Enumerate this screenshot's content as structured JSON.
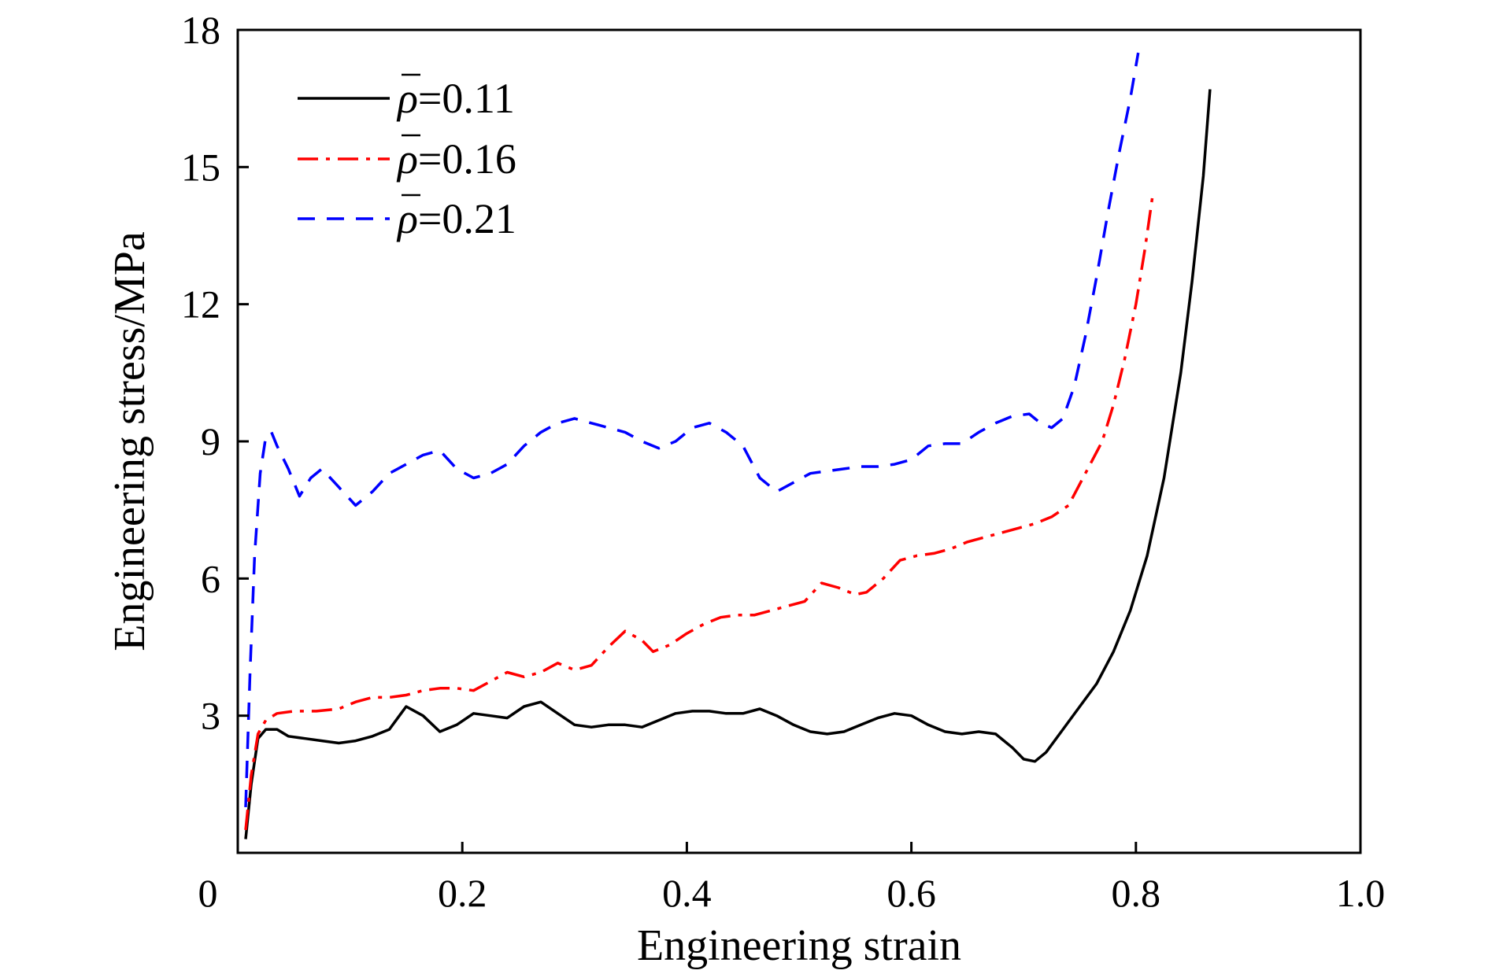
{
  "chart_data": {
    "type": "line",
    "title": "",
    "xlabel": "Engineering strain",
    "ylabel": "Engineering stress/MPa",
    "xlim": [
      0,
      1.0
    ],
    "ylim": [
      0,
      18
    ],
    "x_ticks": [
      0,
      0.2,
      0.4,
      0.6,
      0.8,
      1.0
    ],
    "x_tick_labels": [
      "0",
      "0.2",
      "0.4",
      "0.6",
      "0.8",
      "1.0"
    ],
    "y_ticks": [
      3,
      6,
      9,
      12,
      15,
      18
    ],
    "y_tick_labels": [
      "3",
      "6",
      "9",
      "12",
      "15",
      "18"
    ],
    "grid": false,
    "legend_position": "top-left",
    "series": [
      {
        "name": "ρ=0.11",
        "legend_symbol": "ρ",
        "legend_value": "=0.11",
        "color": "#000000",
        "dash": "solid",
        "points": [
          [
            0.007,
            0.3
          ],
          [
            0.012,
            1.5
          ],
          [
            0.018,
            2.5
          ],
          [
            0.025,
            2.7
          ],
          [
            0.035,
            2.7
          ],
          [
            0.045,
            2.55
          ],
          [
            0.06,
            2.5
          ],
          [
            0.075,
            2.45
          ],
          [
            0.09,
            2.4
          ],
          [
            0.105,
            2.45
          ],
          [
            0.12,
            2.55
          ],
          [
            0.135,
            2.7
          ],
          [
            0.15,
            3.2
          ],
          [
            0.165,
            3.0
          ],
          [
            0.18,
            2.65
          ],
          [
            0.195,
            2.8
          ],
          [
            0.21,
            3.05
          ],
          [
            0.225,
            3.0
          ],
          [
            0.24,
            2.95
          ],
          [
            0.255,
            3.2
          ],
          [
            0.27,
            3.3
          ],
          [
            0.285,
            3.05
          ],
          [
            0.3,
            2.8
          ],
          [
            0.315,
            2.75
          ],
          [
            0.33,
            2.8
          ],
          [
            0.345,
            2.8
          ],
          [
            0.36,
            2.75
          ],
          [
            0.375,
            2.9
          ],
          [
            0.39,
            3.05
          ],
          [
            0.405,
            3.1
          ],
          [
            0.42,
            3.1
          ],
          [
            0.435,
            3.05
          ],
          [
            0.45,
            3.05
          ],
          [
            0.465,
            3.15
          ],
          [
            0.48,
            3.0
          ],
          [
            0.495,
            2.8
          ],
          [
            0.51,
            2.65
          ],
          [
            0.525,
            2.6
          ],
          [
            0.54,
            2.65
          ],
          [
            0.555,
            2.8
          ],
          [
            0.57,
            2.95
          ],
          [
            0.585,
            3.05
          ],
          [
            0.6,
            3.0
          ],
          [
            0.615,
            2.8
          ],
          [
            0.63,
            2.65
          ],
          [
            0.645,
            2.6
          ],
          [
            0.66,
            2.65
          ],
          [
            0.675,
            2.6
          ],
          [
            0.69,
            2.3
          ],
          [
            0.7,
            2.05
          ],
          [
            0.71,
            2.0
          ],
          [
            0.72,
            2.2
          ],
          [
            0.735,
            2.7
          ],
          [
            0.75,
            3.2
          ],
          [
            0.765,
            3.7
          ],
          [
            0.78,
            4.4
          ],
          [
            0.795,
            5.3
          ],
          [
            0.81,
            6.5
          ],
          [
            0.825,
            8.2
          ],
          [
            0.84,
            10.5
          ],
          [
            0.85,
            12.5
          ],
          [
            0.86,
            14.8
          ],
          [
            0.866,
            16.7
          ]
        ]
      },
      {
        "name": "ρ=0.16",
        "legend_symbol": "ρ",
        "legend_value": "=0.16",
        "color": "#ff0000",
        "dash": "dashdot",
        "points": [
          [
            0.007,
            0.5
          ],
          [
            0.012,
            1.7
          ],
          [
            0.018,
            2.6
          ],
          [
            0.025,
            2.9
          ],
          [
            0.035,
            3.05
          ],
          [
            0.05,
            3.1
          ],
          [
            0.07,
            3.1
          ],
          [
            0.09,
            3.15
          ],
          [
            0.105,
            3.3
          ],
          [
            0.12,
            3.4
          ],
          [
            0.135,
            3.4
          ],
          [
            0.15,
            3.45
          ],
          [
            0.165,
            3.55
          ],
          [
            0.18,
            3.6
          ],
          [
            0.195,
            3.6
          ],
          [
            0.21,
            3.55
          ],
          [
            0.225,
            3.75
          ],
          [
            0.24,
            3.95
          ],
          [
            0.255,
            3.85
          ],
          [
            0.27,
            3.95
          ],
          [
            0.285,
            4.15
          ],
          [
            0.3,
            4.0
          ],
          [
            0.315,
            4.1
          ],
          [
            0.33,
            4.5
          ],
          [
            0.345,
            4.85
          ],
          [
            0.36,
            4.65
          ],
          [
            0.37,
            4.4
          ],
          [
            0.385,
            4.55
          ],
          [
            0.4,
            4.8
          ],
          [
            0.415,
            5.0
          ],
          [
            0.43,
            5.15
          ],
          [
            0.445,
            5.2
          ],
          [
            0.46,
            5.2
          ],
          [
            0.475,
            5.3
          ],
          [
            0.49,
            5.4
          ],
          [
            0.505,
            5.5
          ],
          [
            0.52,
            5.9
          ],
          [
            0.535,
            5.8
          ],
          [
            0.55,
            5.65
          ],
          [
            0.56,
            5.7
          ],
          [
            0.575,
            6.0
          ],
          [
            0.59,
            6.4
          ],
          [
            0.605,
            6.5
          ],
          [
            0.62,
            6.55
          ],
          [
            0.635,
            6.65
          ],
          [
            0.65,
            6.8
          ],
          [
            0.665,
            6.9
          ],
          [
            0.68,
            7.0
          ],
          [
            0.695,
            7.1
          ],
          [
            0.71,
            7.2
          ],
          [
            0.725,
            7.35
          ],
          [
            0.74,
            7.6
          ],
          [
            0.755,
            8.3
          ],
          [
            0.77,
            9.0
          ],
          [
            0.78,
            9.8
          ],
          [
            0.79,
            10.8
          ],
          [
            0.8,
            12.0
          ],
          [
            0.808,
            13.2
          ],
          [
            0.815,
            14.4
          ]
        ]
      },
      {
        "name": "ρ=0.21",
        "legend_symbol": "ρ",
        "legend_value": "=0.21",
        "color": "#0000ff",
        "dash": "dashed",
        "points": [
          [
            0.007,
            1.0
          ],
          [
            0.011,
            4.0
          ],
          [
            0.015,
            6.5
          ],
          [
            0.02,
            8.3
          ],
          [
            0.025,
            9.1
          ],
          [
            0.03,
            9.2
          ],
          [
            0.035,
            8.9
          ],
          [
            0.045,
            8.4
          ],
          [
            0.055,
            7.8
          ],
          [
            0.065,
            8.2
          ],
          [
            0.075,
            8.4
          ],
          [
            0.09,
            8.0
          ],
          [
            0.105,
            7.6
          ],
          [
            0.12,
            7.9
          ],
          [
            0.135,
            8.3
          ],
          [
            0.15,
            8.5
          ],
          [
            0.165,
            8.7
          ],
          [
            0.18,
            8.8
          ],
          [
            0.195,
            8.4
          ],
          [
            0.21,
            8.2
          ],
          [
            0.225,
            8.3
          ],
          [
            0.24,
            8.5
          ],
          [
            0.255,
            8.9
          ],
          [
            0.27,
            9.2
          ],
          [
            0.285,
            9.4
          ],
          [
            0.3,
            9.5
          ],
          [
            0.315,
            9.4
          ],
          [
            0.33,
            9.3
          ],
          [
            0.345,
            9.2
          ],
          [
            0.36,
            9.0
          ],
          [
            0.375,
            8.85
          ],
          [
            0.39,
            9.0
          ],
          [
            0.405,
            9.3
          ],
          [
            0.42,
            9.4
          ],
          [
            0.435,
            9.2
          ],
          [
            0.45,
            8.9
          ],
          [
            0.465,
            8.2
          ],
          [
            0.48,
            7.9
          ],
          [
            0.495,
            8.1
          ],
          [
            0.51,
            8.3
          ],
          [
            0.525,
            8.35
          ],
          [
            0.54,
            8.4
          ],
          [
            0.555,
            8.45
          ],
          [
            0.57,
            8.45
          ],
          [
            0.585,
            8.5
          ],
          [
            0.6,
            8.6
          ],
          [
            0.615,
            8.9
          ],
          [
            0.63,
            8.95
          ],
          [
            0.645,
            8.95
          ],
          [
            0.66,
            9.2
          ],
          [
            0.675,
            9.4
          ],
          [
            0.69,
            9.55
          ],
          [
            0.705,
            9.6
          ],
          [
            0.715,
            9.4
          ],
          [
            0.725,
            9.3
          ],
          [
            0.735,
            9.5
          ],
          [
            0.745,
            10.2
          ],
          [
            0.755,
            11.3
          ],
          [
            0.765,
            12.6
          ],
          [
            0.775,
            14.0
          ],
          [
            0.785,
            15.3
          ],
          [
            0.795,
            16.5
          ],
          [
            0.802,
            17.5
          ]
        ]
      }
    ]
  }
}
